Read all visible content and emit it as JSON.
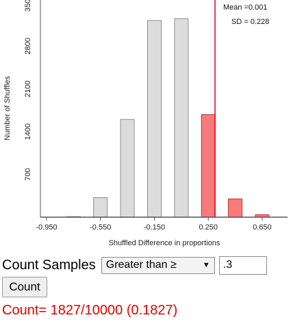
{
  "chart_data": {
    "type": "bar",
    "xlabel": "Shuffled Difference in proportions",
    "ylabel": "Number of Shuffles",
    "x_ticks": [
      "-0.950",
      "-0.550",
      "-0.150",
      "0.250",
      "0.650"
    ],
    "y_ticks": [
      "700",
      "1400",
      "2100",
      "2800",
      "3500"
    ],
    "ylim": [
      0,
      3600
    ],
    "categories": [
      "-0.75",
      "-0.55",
      "-0.35",
      "-0.15",
      "0.05",
      "0.25",
      "0.45",
      "0.65"
    ],
    "values": [
      10,
      320,
      1600,
      3220,
      3250,
      1680,
      300,
      40
    ],
    "highlighted": [
      false,
      false,
      false,
      false,
      false,
      true,
      true,
      true
    ],
    "threshold_value": 0.3,
    "mean_label": "Mean =0.001",
    "sd_label": "SD = 0.228",
    "colors": {
      "bar_fill": "#dcdcdc",
      "bar_stroke": "#8c8c8c",
      "highlight_fill": "#f77b7b",
      "highlight_stroke": "#c03030",
      "threshold_line": "#e8001c"
    }
  },
  "controls": {
    "count_samples_label": "Count Samples",
    "direction_selected": "Greater than ≥",
    "threshold_value": ".3",
    "count_button_label": "Count"
  },
  "result": {
    "text": "Count= 1827/10000 (0.1827)"
  }
}
